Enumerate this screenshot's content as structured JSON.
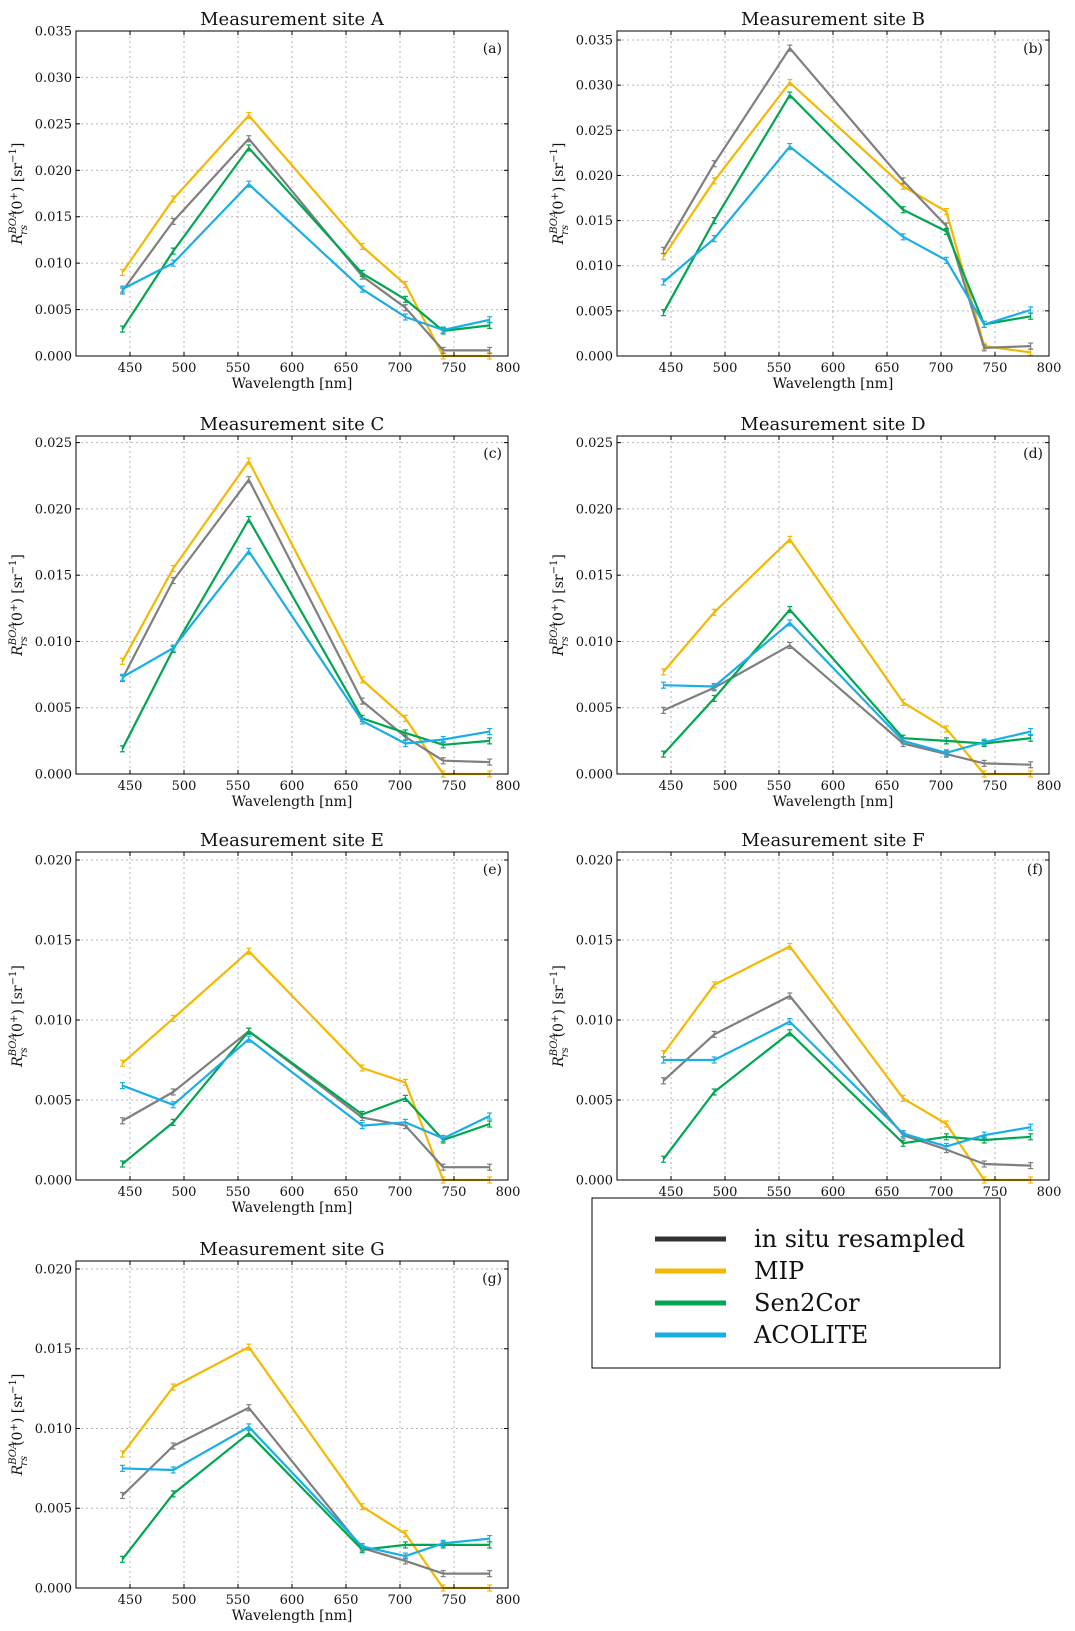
{
  "chart_data": [
    {
      "type": "line",
      "title": "Measurement site A",
      "panel_label": "(a)",
      "xlabel": "Wavelength [nm]",
      "ylabel_main": "R",
      "ylabel_sup": "BOA",
      "ylabel_sub": "rs",
      "ylabel_rest": "(0",
      "ylabel_unit": ") [sr",
      "ylabel_unit_sup": "−1",
      "ylabel_close": "]",
      "xlim": [
        400,
        800
      ],
      "ylim": [
        0,
        0.035
      ],
      "xticks": [
        "450",
        "500",
        "550",
        "600",
        "650",
        "700",
        "750",
        "800"
      ],
      "yticks": [
        "0.000",
        "0.005",
        "0.010",
        "0.015",
        "0.020",
        "0.025",
        "0.030",
        "0.035"
      ],
      "x": [
        443,
        490,
        560,
        665,
        705,
        740,
        783
      ],
      "series": [
        {
          "name": "in situ resampled",
          "values": [
            0.007,
            0.0145,
            0.0234,
            0.0086,
            0.0052,
            0.0006,
            0.0006
          ]
        },
        {
          "name": "MIP",
          "values": [
            0.009,
            0.0169,
            0.0259,
            0.0118,
            0.0077,
            0.0,
            0.0
          ]
        },
        {
          "name": "Sen2Cor",
          "values": [
            0.0029,
            0.0113,
            0.0224,
            0.0089,
            0.0061,
            0.0027,
            0.0033
          ]
        },
        {
          "name": "ACOLITE",
          "values": [
            0.0072,
            0.01,
            0.0185,
            0.0072,
            0.0042,
            0.0028,
            0.0039
          ]
        }
      ]
    },
    {
      "type": "line",
      "title": "Measurement site B",
      "panel_label": "(b)",
      "xlabel": "Wavelength [nm]",
      "ylabel_main": "R",
      "ylabel_sup": "BOA",
      "ylabel_sub": "rs",
      "ylabel_rest": "(0",
      "ylabel_unit": ") [sr",
      "ylabel_unit_sup": "−1",
      "ylabel_close": "]",
      "xlim": [
        400,
        800
      ],
      "ylim": [
        0,
        0.036
      ],
      "xticks": [
        "450",
        "500",
        "550",
        "600",
        "650",
        "700",
        "750",
        "800"
      ],
      "yticks": [
        "0.000",
        "0.005",
        "0.010",
        "0.015",
        "0.020",
        "0.025",
        "0.030",
        "0.035"
      ],
      "x": [
        443,
        490,
        560,
        665,
        705,
        740,
        783
      ],
      "series": [
        {
          "name": "in situ resampled",
          "values": [
            0.0117,
            0.0213,
            0.0341,
            0.0194,
            0.0144,
            0.0009,
            0.0011
          ]
        },
        {
          "name": "MIP",
          "values": [
            0.011,
            0.0194,
            0.0303,
            0.0188,
            0.016,
            0.0011,
            0.0004
          ]
        },
        {
          "name": "Sen2Cor",
          "values": [
            0.0048,
            0.015,
            0.0289,
            0.0162,
            0.0138,
            0.0035,
            0.0044
          ]
        },
        {
          "name": "ACOLITE",
          "values": [
            0.0082,
            0.013,
            0.0232,
            0.0132,
            0.0106,
            0.0035,
            0.0051
          ]
        }
      ]
    },
    {
      "type": "line",
      "title": "Measurement site C",
      "panel_label": "(c)",
      "xlabel": "Wavelength [nm]",
      "ylabel_main": "R",
      "ylabel_sup": "BOA",
      "ylabel_sub": "rs",
      "ylabel_rest": "(0",
      "ylabel_unit": ") [sr",
      "ylabel_unit_sup": "−1",
      "ylabel_close": "]",
      "xlim": [
        400,
        800
      ],
      "ylim": [
        0,
        0.0255
      ],
      "xticks": [
        "450",
        "500",
        "550",
        "600",
        "650",
        "700",
        "750",
        "800"
      ],
      "yticks": [
        "0.000",
        "0.005",
        "0.010",
        "0.015",
        "0.020",
        "0.025"
      ],
      "x": [
        443,
        490,
        560,
        665,
        705,
        740,
        783
      ],
      "series": [
        {
          "name": "in situ resampled",
          "values": [
            0.0072,
            0.0146,
            0.0222,
            0.0055,
            0.0028,
            0.001,
            0.0009
          ]
        },
        {
          "name": "MIP",
          "values": [
            0.0085,
            0.0155,
            0.0236,
            0.0071,
            0.0042,
            0.0,
            0.0
          ]
        },
        {
          "name": "Sen2Cor",
          "values": [
            0.0019,
            0.0094,
            0.0192,
            0.0042,
            0.0031,
            0.0022,
            0.0025
          ]
        },
        {
          "name": "ACOLITE",
          "values": [
            0.0073,
            0.0095,
            0.0168,
            0.004,
            0.0023,
            0.0026,
            0.0032
          ]
        }
      ]
    },
    {
      "type": "line",
      "title": "Measurement site D",
      "panel_label": "(d)",
      "xlabel": "Wavelength [nm]",
      "ylabel_main": "R",
      "ylabel_sup": "BOA",
      "ylabel_sub": "rs",
      "ylabel_rest": "(0",
      "ylabel_unit": ") [sr",
      "ylabel_unit_sup": "−1",
      "ylabel_close": "]",
      "xlim": [
        400,
        800
      ],
      "ylim": [
        0,
        0.0255
      ],
      "xticks": [
        "450",
        "500",
        "550",
        "600",
        "650",
        "700",
        "750",
        "800"
      ],
      "yticks": [
        "0.000",
        "0.005",
        "0.010",
        "0.015",
        "0.020",
        "0.025"
      ],
      "x": [
        443,
        490,
        560,
        665,
        705,
        740,
        783
      ],
      "series": [
        {
          "name": "in situ resampled",
          "values": [
            0.0048,
            0.0065,
            0.0097,
            0.0023,
            0.0015,
            0.0008,
            0.0007
          ]
        },
        {
          "name": "MIP",
          "values": [
            0.0077,
            0.0122,
            0.0177,
            0.0054,
            0.0034,
            0.0,
            0.0
          ]
        },
        {
          "name": "Sen2Cor",
          "values": [
            0.0015,
            0.0057,
            0.0124,
            0.0027,
            0.0025,
            0.0023,
            0.0027
          ]
        },
        {
          "name": "ACOLITE",
          "values": [
            0.0067,
            0.0066,
            0.0114,
            0.0025,
            0.0016,
            0.0024,
            0.0032
          ]
        }
      ]
    },
    {
      "type": "line",
      "title": "Measurement site E",
      "panel_label": "(e)",
      "xlabel": "Wavelength [nm]",
      "ylabel_main": "R",
      "ylabel_sup": "BOA",
      "ylabel_sub": "rs",
      "ylabel_rest": "(0",
      "ylabel_unit": ") [sr",
      "ylabel_unit_sup": "−1",
      "ylabel_close": "]",
      "xlim": [
        400,
        800
      ],
      "ylim": [
        0,
        0.0205
      ],
      "xticks": [
        "450",
        "500",
        "550",
        "600",
        "650",
        "700",
        "750",
        "800"
      ],
      "yticks": [
        "0.000",
        "0.005",
        "0.010",
        "0.015",
        "0.020"
      ],
      "x": [
        443,
        490,
        560,
        665,
        705,
        740,
        783
      ],
      "series": [
        {
          "name": "in situ resampled",
          "values": [
            0.0037,
            0.0055,
            0.0093,
            0.0039,
            0.0034,
            0.0008,
            0.0008
          ]
        },
        {
          "name": "MIP",
          "values": [
            0.0073,
            0.0101,
            0.0143,
            0.007,
            0.0061,
            0.0,
            0.0
          ]
        },
        {
          "name": "Sen2Cor",
          "values": [
            0.001,
            0.0036,
            0.0093,
            0.0041,
            0.0051,
            0.0025,
            0.0035
          ]
        },
        {
          "name": "ACOLITE",
          "values": [
            0.0059,
            0.0047,
            0.0088,
            0.0034,
            0.0036,
            0.0026,
            0.004
          ]
        }
      ]
    },
    {
      "type": "line",
      "title": "Measurement site F",
      "panel_label": "(f)",
      "xlabel": "Wavelength [nm]",
      "ylabel_main": "R",
      "ylabel_sup": "BOA",
      "ylabel_sub": "rs",
      "ylabel_rest": "(0",
      "ylabel_unit": ") [sr",
      "ylabel_unit_sup": "−1",
      "ylabel_close": "]",
      "xlim": [
        400,
        800
      ],
      "ylim": [
        0,
        0.0205
      ],
      "xticks": [
        "450",
        "500",
        "550",
        "600",
        "650",
        "700",
        "750",
        "800"
      ],
      "yticks": [
        "0.000",
        "0.005",
        "0.010",
        "0.015",
        "0.020"
      ],
      "x": [
        443,
        490,
        560,
        665,
        705,
        740,
        783
      ],
      "series": [
        {
          "name": "in situ resampled",
          "values": [
            0.0062,
            0.0091,
            0.0115,
            0.0028,
            0.0019,
            0.001,
            0.0009
          ]
        },
        {
          "name": "MIP",
          "values": [
            0.0079,
            0.0122,
            0.0146,
            0.0051,
            0.0035,
            0.0,
            0.0
          ]
        },
        {
          "name": "Sen2Cor",
          "values": [
            0.0013,
            0.0055,
            0.0092,
            0.0023,
            0.0027,
            0.0025,
            0.0027
          ]
        },
        {
          "name": "ACOLITE",
          "values": [
            0.0075,
            0.0075,
            0.0099,
            0.0029,
            0.0021,
            0.0028,
            0.0033
          ]
        }
      ]
    },
    {
      "type": "line",
      "title": "Measurement site G",
      "panel_label": "(g)",
      "xlabel": "Wavelength [nm]",
      "ylabel_main": "R",
      "ylabel_sup": "BOA",
      "ylabel_sub": "rs",
      "ylabel_rest": "(0",
      "ylabel_unit": ") [sr",
      "ylabel_unit_sup": "−1",
      "ylabel_close": "]",
      "xlim": [
        400,
        800
      ],
      "ylim": [
        0,
        0.0205
      ],
      "xticks": [
        "450",
        "500",
        "550",
        "600",
        "650",
        "700",
        "750",
        "800"
      ],
      "yticks": [
        "0.000",
        "0.005",
        "0.010",
        "0.015",
        "0.020"
      ],
      "x": [
        443,
        490,
        560,
        665,
        705,
        740,
        783
      ],
      "series": [
        {
          "name": "in situ resampled",
          "values": [
            0.0058,
            0.0089,
            0.0113,
            0.0025,
            0.0017,
            0.0009,
            0.0009
          ]
        },
        {
          "name": "MIP",
          "values": [
            0.0084,
            0.0126,
            0.0151,
            0.0051,
            0.0034,
            0.0,
            0.0
          ]
        },
        {
          "name": "Sen2Cor",
          "values": [
            0.0018,
            0.0059,
            0.0097,
            0.0024,
            0.0027,
            0.0027,
            0.0027
          ]
        },
        {
          "name": "ACOLITE",
          "values": [
            0.0075,
            0.0074,
            0.0101,
            0.0026,
            0.002,
            0.0028,
            0.0031
          ]
        }
      ]
    }
  ],
  "legend": {
    "placement": "bottom-right",
    "entries": [
      {
        "label": "in situ resampled",
        "color": "#333333"
      },
      {
        "label": "MIP",
        "color": "#f5b800"
      },
      {
        "label": "Sen2Cor",
        "color": "#00a651"
      },
      {
        "label": "ACOLITE",
        "color": "#1aaee5"
      }
    ]
  },
  "colors": {
    "in situ resampled": "#7f7f7f",
    "MIP": "#f5b800",
    "Sen2Cor": "#00a651",
    "ACOLITE": "#1aaee5",
    "grid": "#b5b5b5"
  }
}
